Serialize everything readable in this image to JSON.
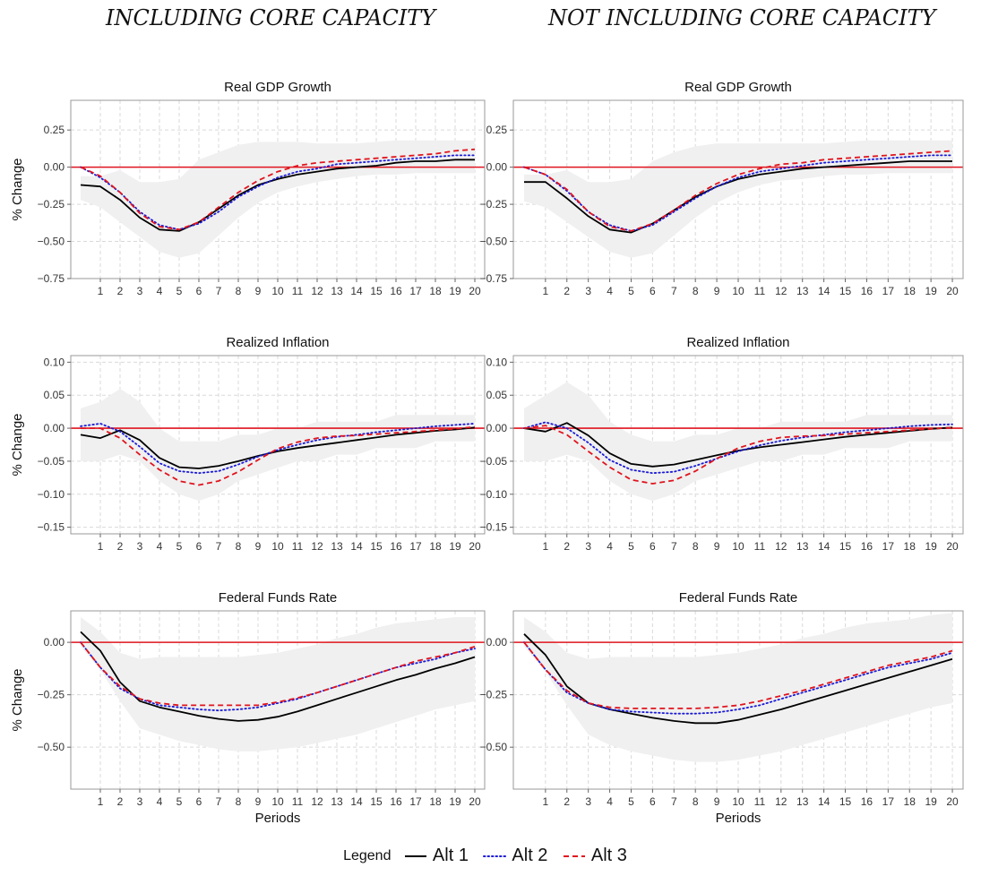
{
  "column_titles": [
    "INCLUDING CORE CAPACITY",
    "NOT INCLUDING CORE CAPACITY"
  ],
  "legend": {
    "title": "Legend",
    "items": [
      {
        "label": "Alt 1",
        "color": "#000000",
        "style": "solid"
      },
      {
        "label": "Alt 2",
        "color": "#1a1ad6",
        "style": "dotted"
      },
      {
        "label": "Alt 3",
        "color": "#e0141e",
        "style": "dashed"
      }
    ]
  },
  "colors": {
    "zero_line": "#e0141e",
    "band": "#f0f0f0",
    "grid": "#d9d9d9",
    "frame": "#999999"
  },
  "chart_data": [
    {
      "type": "line",
      "title": "Real GDP Growth",
      "ylabel": "% Change",
      "xlabel": "",
      "x": [
        0,
        1,
        2,
        3,
        4,
        5,
        6,
        7,
        8,
        9,
        10,
        11,
        12,
        13,
        14,
        15,
        16,
        17,
        18,
        19,
        20
      ],
      "xticks": [
        1,
        2,
        3,
        4,
        5,
        6,
        7,
        8,
        9,
        10,
        11,
        12,
        13,
        14,
        15,
        16,
        17,
        18,
        19,
        20
      ],
      "ylim": [
        -0.75,
        0.45
      ],
      "yticks": [
        -0.75,
        -0.5,
        -0.25,
        0,
        0.25
      ],
      "yticklabels": [
        "−0.75",
        "−0.50",
        "−0.25",
        "0.00",
        "0.25"
      ],
      "band_upper": [
        -0.06,
        -0.06,
        -0.02,
        -0.1,
        -0.1,
        -0.08,
        0.05,
        0.1,
        0.15,
        0.17,
        0.17,
        0.17,
        0.16,
        0.16,
        0.16,
        0.17,
        0.18,
        0.18,
        0.18,
        0.18,
        0.18
      ],
      "band_lower": [
        -0.22,
        -0.27,
        -0.37,
        -0.47,
        -0.57,
        -0.61,
        -0.58,
        -0.46,
        -0.34,
        -0.24,
        -0.17,
        -0.13,
        -0.1,
        -0.08,
        -0.06,
        -0.05,
        -0.05,
        -0.04,
        -0.04,
        -0.04,
        -0.04
      ],
      "series": [
        {
          "name": "Alt 1",
          "values": [
            -0.12,
            -0.13,
            -0.22,
            -0.34,
            -0.42,
            -0.43,
            -0.37,
            -0.28,
            -0.19,
            -0.12,
            -0.08,
            -0.05,
            -0.03,
            -0.01,
            0.0,
            0.01,
            0.03,
            0.04,
            0.04,
            0.05,
            0.05
          ]
        },
        {
          "name": "Alt 2",
          "values": [
            0.0,
            -0.07,
            -0.17,
            -0.3,
            -0.39,
            -0.42,
            -0.38,
            -0.3,
            -0.2,
            -0.13,
            -0.07,
            -0.03,
            -0.01,
            0.02,
            0.03,
            0.04,
            0.05,
            0.06,
            0.07,
            0.08,
            0.08
          ]
        },
        {
          "name": "Alt 3",
          "values": [
            0.0,
            -0.06,
            -0.17,
            -0.31,
            -0.4,
            -0.42,
            -0.37,
            -0.27,
            -0.17,
            -0.09,
            -0.03,
            0.01,
            0.03,
            0.04,
            0.05,
            0.06,
            0.07,
            0.08,
            0.09,
            0.11,
            0.12
          ]
        }
      ]
    },
    {
      "type": "line",
      "title": "Real GDP Growth",
      "ylabel": "",
      "xlabel": "",
      "x": [
        0,
        1,
        2,
        3,
        4,
        5,
        6,
        7,
        8,
        9,
        10,
        11,
        12,
        13,
        14,
        15,
        16,
        17,
        18,
        19,
        20
      ],
      "xticks": [
        1,
        2,
        3,
        4,
        5,
        6,
        7,
        8,
        9,
        10,
        11,
        12,
        13,
        14,
        15,
        16,
        17,
        18,
        19,
        20
      ],
      "ylim": [
        -0.75,
        0.45
      ],
      "yticks": [
        -0.75,
        -0.5,
        -0.25,
        0,
        0.25
      ],
      "yticklabels": [
        "−0.75",
        "−0.50",
        "−0.25",
        "0.00",
        "0.25"
      ],
      "band_upper": [
        -0.05,
        -0.05,
        -0.02,
        -0.1,
        -0.1,
        -0.08,
        0.04,
        0.1,
        0.14,
        0.16,
        0.16,
        0.16,
        0.16,
        0.16,
        0.16,
        0.17,
        0.18,
        0.18,
        0.18,
        0.18,
        0.18
      ],
      "band_lower": [
        -0.23,
        -0.27,
        -0.37,
        -0.47,
        -0.57,
        -0.61,
        -0.58,
        -0.46,
        -0.34,
        -0.24,
        -0.17,
        -0.12,
        -0.09,
        -0.08,
        -0.06,
        -0.05,
        -0.05,
        -0.04,
        -0.04,
        -0.04,
        -0.04
      ],
      "series": [
        {
          "name": "Alt 1",
          "values": [
            -0.1,
            -0.1,
            -0.21,
            -0.33,
            -0.42,
            -0.44,
            -0.38,
            -0.29,
            -0.2,
            -0.13,
            -0.08,
            -0.05,
            -0.03,
            -0.01,
            0.0,
            0.01,
            0.02,
            0.03,
            0.04,
            0.04,
            0.04
          ]
        },
        {
          "name": "Alt 2",
          "values": [
            0.0,
            -0.05,
            -0.16,
            -0.3,
            -0.39,
            -0.43,
            -0.39,
            -0.3,
            -0.21,
            -0.13,
            -0.07,
            -0.03,
            -0.01,
            0.01,
            0.03,
            0.04,
            0.05,
            0.06,
            0.07,
            0.08,
            0.08
          ]
        },
        {
          "name": "Alt 3",
          "values": [
            0.0,
            -0.05,
            -0.15,
            -0.3,
            -0.4,
            -0.43,
            -0.38,
            -0.29,
            -0.19,
            -0.11,
            -0.05,
            -0.01,
            0.02,
            0.03,
            0.05,
            0.06,
            0.07,
            0.08,
            0.09,
            0.1,
            0.11
          ]
        }
      ]
    },
    {
      "type": "line",
      "title": "Realized Inflation",
      "ylabel": "% Change",
      "xlabel": "",
      "x": [
        0,
        1,
        2,
        3,
        4,
        5,
        6,
        7,
        8,
        9,
        10,
        11,
        12,
        13,
        14,
        15,
        16,
        17,
        18,
        19,
        20
      ],
      "xticks": [
        1,
        2,
        3,
        4,
        5,
        6,
        7,
        8,
        9,
        10,
        11,
        12,
        13,
        14,
        15,
        16,
        17,
        18,
        19,
        20
      ],
      "ylim": [
        -0.16,
        0.11
      ],
      "yticks": [
        -0.15,
        -0.1,
        -0.05,
        0,
        0.05,
        0.1
      ],
      "yticklabels": [
        "−0.15",
        "−0.10",
        "−0.05",
        "0.00",
        "0.05",
        "0.10"
      ],
      "band_upper": [
        0.03,
        0.04,
        0.06,
        0.04,
        0.0,
        -0.02,
        -0.02,
        -0.02,
        -0.01,
        -0.01,
        0.0,
        0.0,
        0.01,
        0.01,
        0.01,
        0.01,
        0.02,
        0.02,
        0.02,
        0.02,
        0.02
      ],
      "band_lower": [
        -0.05,
        -0.05,
        -0.04,
        -0.05,
        -0.08,
        -0.1,
        -0.11,
        -0.1,
        -0.08,
        -0.07,
        -0.06,
        -0.05,
        -0.05,
        -0.04,
        -0.04,
        -0.03,
        -0.03,
        -0.03,
        -0.02,
        -0.02,
        -0.02
      ],
      "series": [
        {
          "name": "Alt 1",
          "values": [
            -0.01,
            -0.015,
            -0.003,
            -0.018,
            -0.045,
            -0.059,
            -0.061,
            -0.057,
            -0.05,
            -0.042,
            -0.035,
            -0.03,
            -0.026,
            -0.022,
            -0.018,
            -0.014,
            -0.01,
            -0.007,
            -0.004,
            -0.002,
            0.001
          ]
        },
        {
          "name": "Alt 2",
          "values": [
            0.003,
            0.007,
            -0.005,
            -0.028,
            -0.053,
            -0.065,
            -0.068,
            -0.065,
            -0.055,
            -0.043,
            -0.033,
            -0.025,
            -0.018,
            -0.013,
            -0.01,
            -0.006,
            -0.003,
            0.0,
            0.003,
            0.005,
            0.007
          ]
        },
        {
          "name": "Alt 3",
          "values": [
            0.0,
            0.0,
            -0.015,
            -0.04,
            -0.063,
            -0.08,
            -0.086,
            -0.08,
            -0.066,
            -0.048,
            -0.031,
            -0.021,
            -0.015,
            -0.012,
            -0.011,
            -0.009,
            -0.007,
            -0.005,
            -0.003,
            -0.001,
            0.002
          ]
        }
      ]
    },
    {
      "type": "line",
      "title": "Realized Inflation",
      "ylabel": "",
      "xlabel": "",
      "x": [
        0,
        1,
        2,
        3,
        4,
        5,
        6,
        7,
        8,
        9,
        10,
        11,
        12,
        13,
        14,
        15,
        16,
        17,
        18,
        19,
        20
      ],
      "xticks": [
        1,
        2,
        3,
        4,
        5,
        6,
        7,
        8,
        9,
        10,
        11,
        12,
        13,
        14,
        15,
        16,
        17,
        18,
        19,
        20
      ],
      "ylim": [
        -0.16,
        0.11
      ],
      "yticks": [
        -0.15,
        -0.1,
        -0.05,
        0,
        0.05,
        0.1
      ],
      "yticklabels": [
        "−0.15",
        "−0.10",
        "−0.05",
        "0.00",
        "0.05",
        "0.10"
      ],
      "band_upper": [
        0.03,
        0.05,
        0.07,
        0.05,
        0.01,
        -0.01,
        -0.02,
        -0.02,
        -0.01,
        -0.01,
        0.0,
        0.0,
        0.01,
        0.01,
        0.01,
        0.01,
        0.02,
        0.02,
        0.02,
        0.02,
        0.02
      ],
      "band_lower": [
        -0.05,
        -0.05,
        -0.04,
        -0.05,
        -0.08,
        -0.1,
        -0.11,
        -0.1,
        -0.08,
        -0.07,
        -0.06,
        -0.05,
        -0.05,
        -0.04,
        -0.04,
        -0.03,
        -0.03,
        -0.03,
        -0.02,
        -0.02,
        -0.02
      ],
      "series": [
        {
          "name": "Alt 1",
          "values": [
            0.0,
            -0.005,
            0.008,
            -0.011,
            -0.038,
            -0.054,
            -0.058,
            -0.055,
            -0.048,
            -0.041,
            -0.034,
            -0.029,
            -0.025,
            -0.021,
            -0.017,
            -0.013,
            -0.01,
            -0.007,
            -0.004,
            -0.001,
            0.001
          ]
        },
        {
          "name": "Alt 2",
          "values": [
            0.0,
            0.009,
            0.0,
            -0.022,
            -0.048,
            -0.063,
            -0.068,
            -0.066,
            -0.057,
            -0.046,
            -0.035,
            -0.026,
            -0.019,
            -0.014,
            -0.01,
            -0.006,
            -0.003,
            0.0,
            0.003,
            0.005,
            0.006
          ]
        },
        {
          "name": "Alt 3",
          "values": [
            0.0,
            0.004,
            -0.01,
            -0.035,
            -0.059,
            -0.078,
            -0.084,
            -0.079,
            -0.065,
            -0.046,
            -0.03,
            -0.02,
            -0.014,
            -0.012,
            -0.011,
            -0.009,
            -0.007,
            -0.005,
            -0.003,
            -0.001,
            0.001
          ]
        }
      ]
    },
    {
      "type": "line",
      "title": "Federal Funds Rate",
      "ylabel": "% Change",
      "xlabel": "Periods",
      "x": [
        0,
        1,
        2,
        3,
        4,
        5,
        6,
        7,
        8,
        9,
        10,
        11,
        12,
        13,
        14,
        15,
        16,
        17,
        18,
        19,
        20
      ],
      "xticks": [
        1,
        2,
        3,
        4,
        5,
        6,
        7,
        8,
        9,
        10,
        11,
        12,
        13,
        14,
        15,
        16,
        17,
        18,
        19,
        20
      ],
      "ylim": [
        -0.7,
        0.15
      ],
      "yticks": [
        -0.5,
        -0.25,
        0
      ],
      "yticklabels": [
        "−0.50",
        "−0.25",
        "0.00"
      ],
      "band_upper": [
        0.12,
        0.05,
        -0.05,
        -0.08,
        -0.07,
        -0.07,
        -0.07,
        -0.07,
        -0.07,
        -0.06,
        -0.05,
        -0.03,
        -0.01,
        0.02,
        0.04,
        0.07,
        0.09,
        0.1,
        0.11,
        0.12,
        0.12
      ],
      "band_lower": [
        -0.02,
        -0.13,
        -0.28,
        -0.41,
        -0.44,
        -0.47,
        -0.49,
        -0.51,
        -0.52,
        -0.52,
        -0.51,
        -0.5,
        -0.48,
        -0.46,
        -0.44,
        -0.41,
        -0.38,
        -0.35,
        -0.32,
        -0.3,
        -0.28
      ],
      "series": [
        {
          "name": "Alt 1",
          "values": [
            0.05,
            -0.04,
            -0.19,
            -0.28,
            -0.31,
            -0.33,
            -0.35,
            -0.365,
            -0.375,
            -0.37,
            -0.355,
            -0.33,
            -0.3,
            -0.27,
            -0.24,
            -0.21,
            -0.18,
            -0.155,
            -0.125,
            -0.1,
            -0.07
          ]
        },
        {
          "name": "Alt 2",
          "values": [
            0.0,
            -0.12,
            -0.22,
            -0.27,
            -0.3,
            -0.31,
            -0.32,
            -0.325,
            -0.32,
            -0.31,
            -0.29,
            -0.27,
            -0.24,
            -0.21,
            -0.18,
            -0.15,
            -0.12,
            -0.1,
            -0.08,
            -0.05,
            -0.03
          ]
        },
        {
          "name": "Alt 3",
          "values": [
            0.0,
            -0.12,
            -0.21,
            -0.27,
            -0.29,
            -0.3,
            -0.3,
            -0.3,
            -0.3,
            -0.3,
            -0.285,
            -0.265,
            -0.24,
            -0.21,
            -0.18,
            -0.15,
            -0.12,
            -0.09,
            -0.07,
            -0.05,
            -0.02
          ]
        }
      ]
    },
    {
      "type": "line",
      "title": "Federal Funds Rate",
      "ylabel": "",
      "xlabel": "Periods",
      "x": [
        0,
        1,
        2,
        3,
        4,
        5,
        6,
        7,
        8,
        9,
        10,
        11,
        12,
        13,
        14,
        15,
        16,
        17,
        18,
        19,
        20
      ],
      "xticks": [
        1,
        2,
        3,
        4,
        5,
        6,
        7,
        8,
        9,
        10,
        11,
        12,
        13,
        14,
        15,
        16,
        17,
        18,
        19,
        20
      ],
      "ylim": [
        -0.7,
        0.15
      ],
      "yticks": [
        -0.5,
        -0.25,
        0
      ],
      "yticklabels": [
        "−0.50",
        "−0.25",
        "0.00"
      ],
      "band_upper": [
        0.12,
        0.05,
        -0.05,
        -0.08,
        -0.07,
        -0.07,
        -0.07,
        -0.07,
        -0.07,
        -0.06,
        -0.05,
        -0.03,
        -0.01,
        0.02,
        0.04,
        0.07,
        0.09,
        0.1,
        0.11,
        0.13,
        0.14
      ],
      "band_lower": [
        -0.02,
        -0.14,
        -0.3,
        -0.44,
        -0.49,
        -0.52,
        -0.54,
        -0.56,
        -0.57,
        -0.57,
        -0.56,
        -0.54,
        -0.52,
        -0.49,
        -0.46,
        -0.43,
        -0.4,
        -0.37,
        -0.34,
        -0.31,
        -0.29
      ],
      "series": [
        {
          "name": "Alt 1",
          "values": [
            0.04,
            -0.06,
            -0.21,
            -0.29,
            -0.32,
            -0.34,
            -0.36,
            -0.375,
            -0.385,
            -0.385,
            -0.37,
            -0.345,
            -0.32,
            -0.29,
            -0.26,
            -0.23,
            -0.2,
            -0.17,
            -0.14,
            -0.11,
            -0.08
          ]
        },
        {
          "name": "Alt 2",
          "values": [
            0.0,
            -0.13,
            -0.24,
            -0.29,
            -0.32,
            -0.33,
            -0.335,
            -0.34,
            -0.34,
            -0.335,
            -0.32,
            -0.3,
            -0.27,
            -0.24,
            -0.21,
            -0.18,
            -0.15,
            -0.12,
            -0.1,
            -0.08,
            -0.05
          ]
        },
        {
          "name": "Alt 3",
          "values": [
            0.0,
            -0.13,
            -0.23,
            -0.29,
            -0.31,
            -0.315,
            -0.315,
            -0.315,
            -0.315,
            -0.31,
            -0.3,
            -0.28,
            -0.255,
            -0.23,
            -0.2,
            -0.17,
            -0.14,
            -0.11,
            -0.09,
            -0.07,
            -0.04
          ]
        }
      ]
    }
  ]
}
